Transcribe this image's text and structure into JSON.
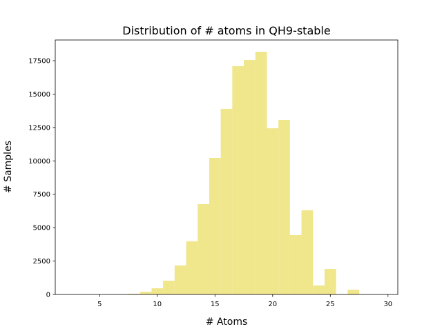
{
  "chart_data": {
    "type": "histogram",
    "title": "Distribution of # atoms in QH9-stable",
    "x_label": "# Atoms",
    "y_label": "# Samples",
    "bins": [
      2.5,
      3.5,
      4.5,
      5.5,
      6.5,
      7.5,
      8.5,
      9.5,
      10.5,
      11.5,
      12.5,
      13.5,
      14.5,
      15.5,
      16.5,
      17.5,
      18.5,
      19.5,
      20.5,
      21.5,
      22.5,
      23.5,
      24.5,
      25.5,
      26.5,
      27.5,
      28.5,
      29.5
    ],
    "values": [
      0,
      0,
      0,
      2,
      20,
      50,
      200,
      460,
      1030,
      2170,
      3980,
      6760,
      10220,
      13890,
      17090,
      17550,
      18170,
      12440,
      13060,
      4440,
      6300,
      670,
      1910,
      20,
      360,
      5,
      2
    ],
    "color": "#f0e68c",
    "xlim": [
      1.15,
      30.85
    ],
    "xticks": [
      5,
      10,
      15,
      20,
      25,
      30
    ],
    "ylim": [
      0,
      19050
    ],
    "yticks": [
      0,
      2500,
      5000,
      7500,
      10000,
      12500,
      15000,
      17500
    ]
  }
}
